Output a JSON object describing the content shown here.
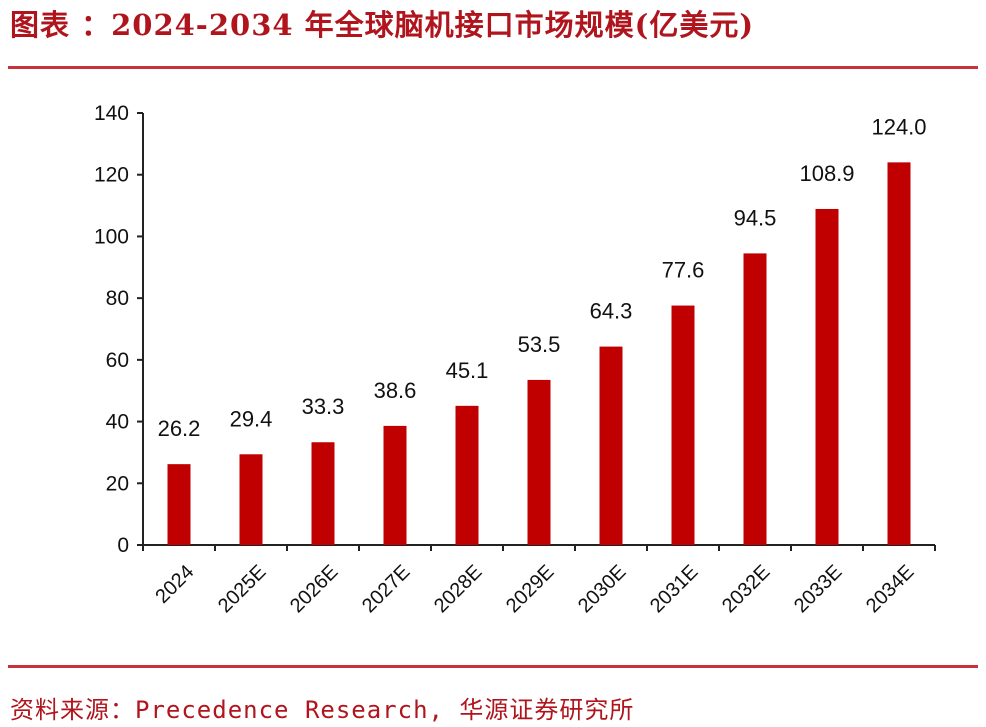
{
  "header": {
    "title": "图表 ：2024-2034 年全球脑机接口市场规模(亿美元)"
  },
  "footer": {
    "source": "资料来源：Precedence Research, 华源证券研究所"
  },
  "colors": {
    "bar": "#c00000",
    "accent": "#b0151e"
  },
  "chart_data": {
    "type": "bar",
    "title": "2024-2034 年全球脑机接口市场规模(亿美元)",
    "xlabel": "",
    "ylabel": "",
    "categories": [
      "2024",
      "2025E",
      "2026E",
      "2027E",
      "2028E",
      "2029E",
      "2030E",
      "2031E",
      "2032E",
      "2033E",
      "2034E"
    ],
    "values": [
      26.2,
      29.4,
      33.3,
      38.6,
      45.1,
      53.5,
      64.3,
      77.6,
      94.5,
      108.9,
      124.0
    ],
    "value_labels": [
      "26.2",
      "29.4",
      "33.3",
      "38.6",
      "45.1",
      "53.5",
      "64.3",
      "77.6",
      "94.5",
      "108.9",
      "124.0"
    ],
    "ylim": [
      0,
      140
    ],
    "yticks": [
      0,
      20,
      40,
      60,
      80,
      100,
      120,
      140
    ],
    "grid": false,
    "legend": "none"
  }
}
